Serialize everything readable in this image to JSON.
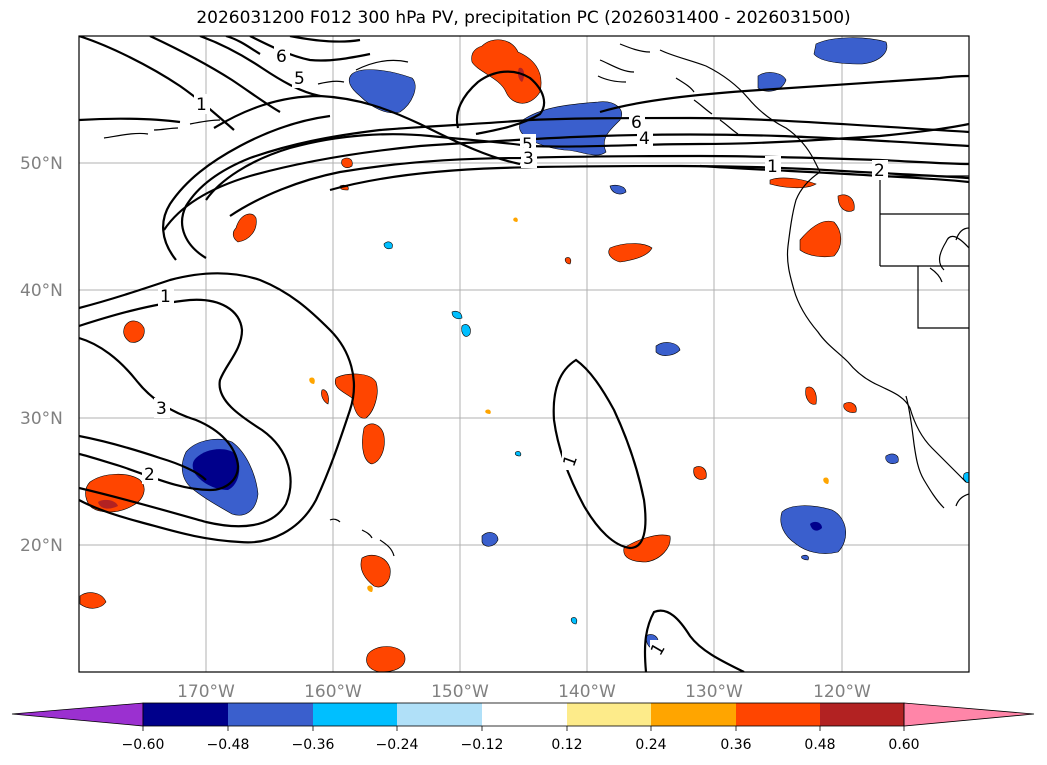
{
  "title": "2026031200 F012 300 hPa PV, precipitation PC (2026031400 - 2026031500)",
  "map": {
    "lat_labels": [
      "50°N",
      "40°N",
      "30°N",
      "20°N"
    ],
    "lon_labels": [
      "170°W",
      "160°W",
      "150°W",
      "140°W",
      "130°W",
      "120°W"
    ],
    "lat_values": [
      50,
      40,
      30,
      20
    ],
    "lon_values": [
      -170,
      -160,
      -150,
      -140,
      -130,
      -120
    ],
    "extent": {
      "lon_min": -180,
      "lon_max": -110,
      "lat_min": 10,
      "lat_max": 60
    }
  },
  "pv_contour_labels": [
    "6",
    "5",
    "1",
    "6",
    "5",
    "4",
    "3",
    "2",
    "1",
    "1",
    "3",
    "2",
    "1",
    "1"
  ],
  "colorbar": {
    "ticks": [
      "−0.60",
      "−0.48",
      "−0.36",
      "−0.24",
      "−0.12",
      "0.12",
      "0.24",
      "0.36",
      "0.48",
      "0.60"
    ],
    "colors": [
      "#9b30d0",
      "#00008b",
      "#3a5fcd",
      "#00bfff",
      "#b0e0f8",
      "#ffffff",
      "#fdeb8a",
      "#ffa500",
      "#ff4500",
      "#b22222",
      "#ff85a8"
    ]
  }
}
